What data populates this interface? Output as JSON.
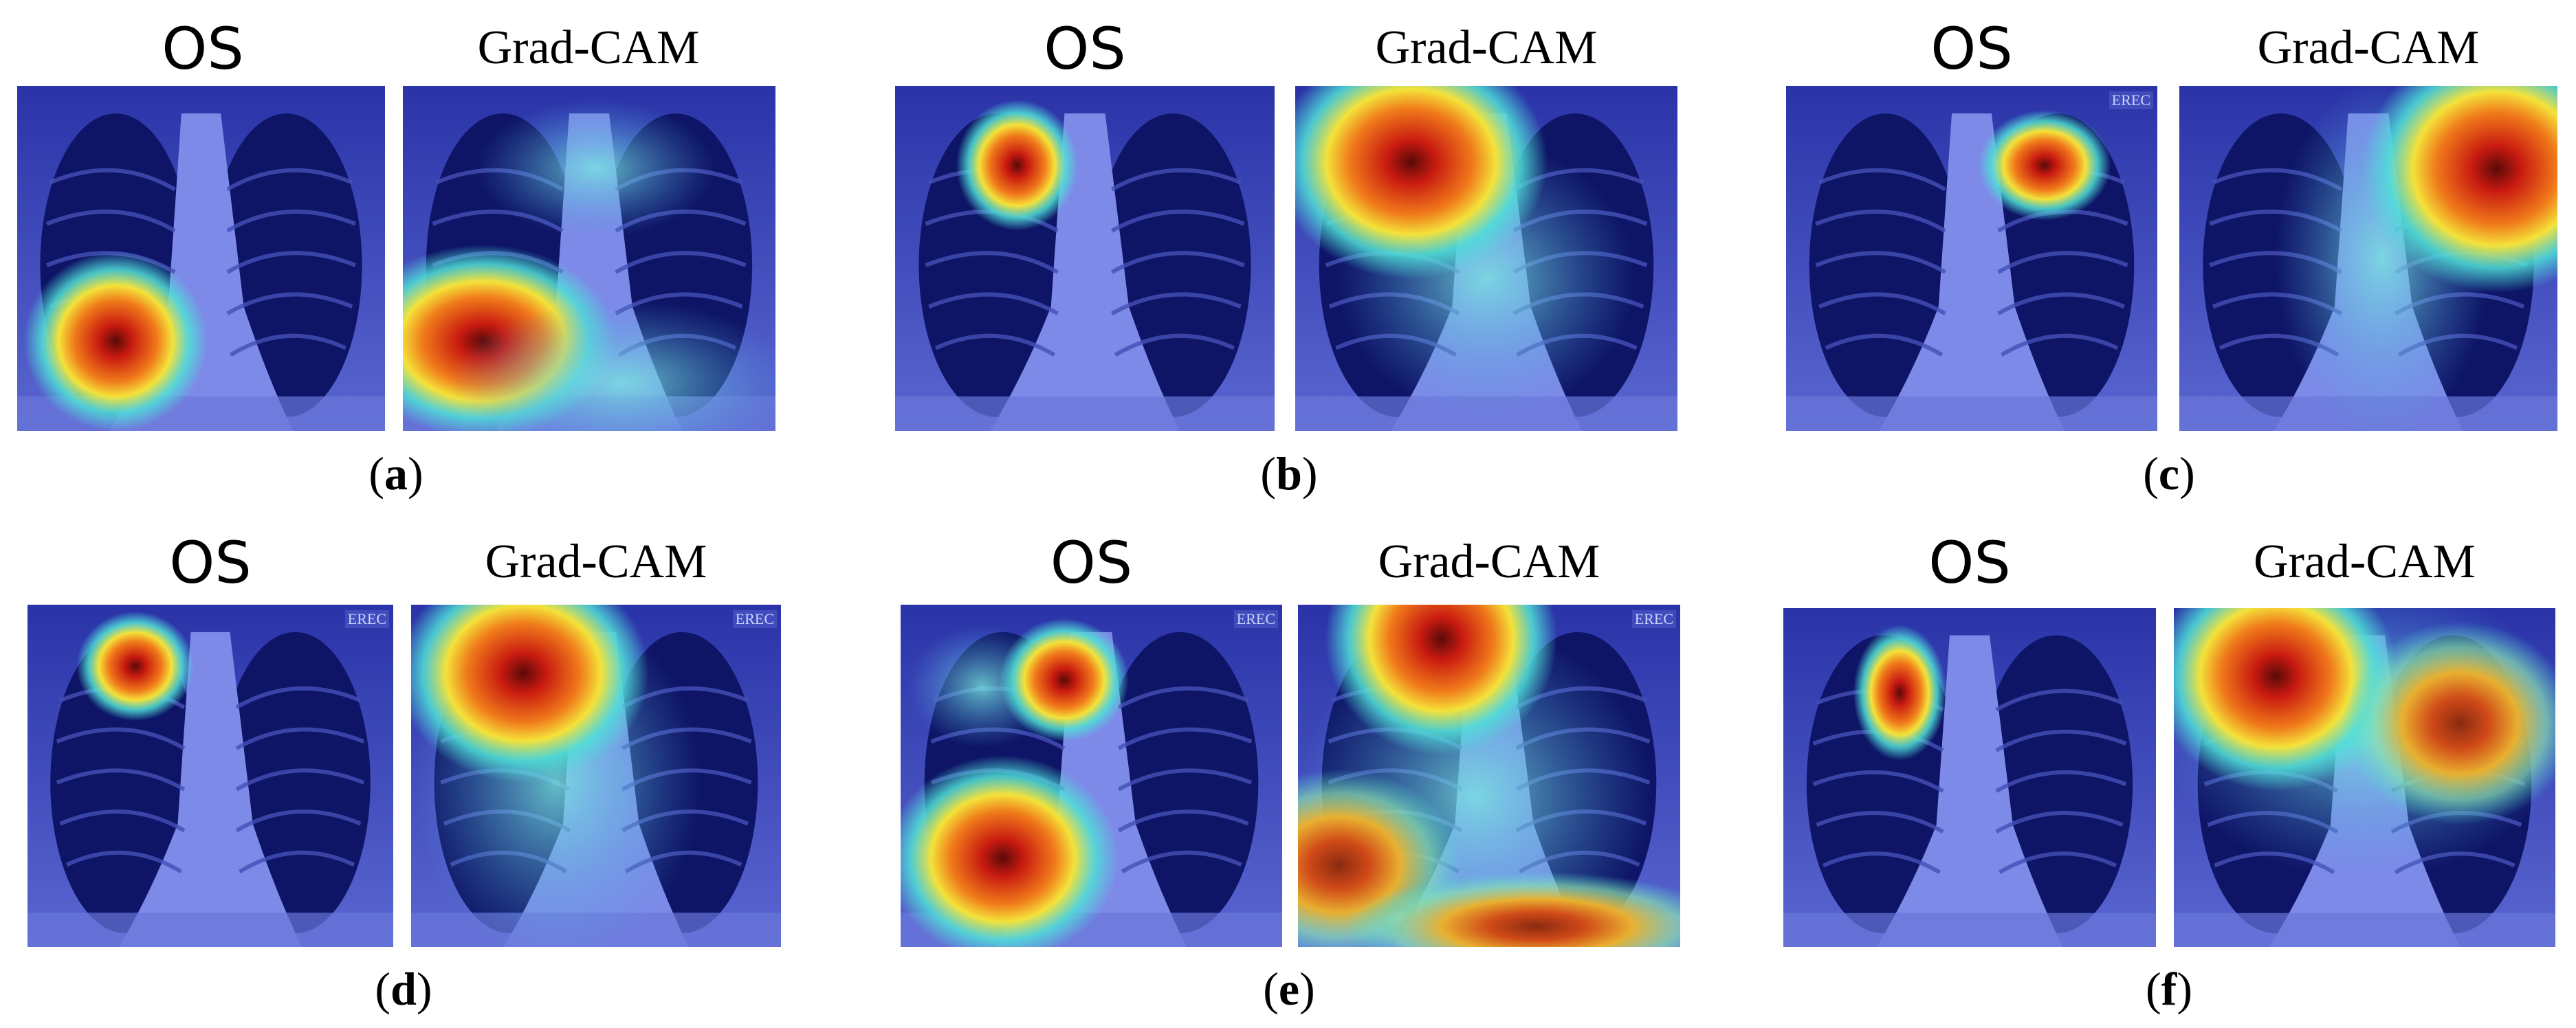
{
  "panels": [
    {
      "id": "a",
      "left_header": "OS",
      "right_header": "Grad-CAM",
      "caption_letter": "a"
    },
    {
      "id": "b",
      "left_header": "OS",
      "right_header": "Grad-CAM",
      "caption_letter": "b"
    },
    {
      "id": "c",
      "left_header": "OS",
      "right_header": "Grad-CAM",
      "caption_letter": "c"
    },
    {
      "id": "d",
      "left_header": "OS",
      "right_header": "Grad-CAM",
      "caption_letter": "d"
    },
    {
      "id": "e",
      "left_header": "OS",
      "right_header": "Grad-CAM",
      "caption_letter": "e"
    },
    {
      "id": "f",
      "left_header": "OS",
      "right_header": "Grad-CAM",
      "caption_letter": "f"
    }
  ],
  "image_tags": {
    "marker": "EREC"
  },
  "colors": {
    "xray_base": "#26309a",
    "lung_dark": "#0e1466",
    "mediastinum": "#7d8ae8",
    "heat_red": "#c81a10",
    "heat_yellow": "#f4e23a",
    "heat_cyan": "#4fe0d8"
  }
}
